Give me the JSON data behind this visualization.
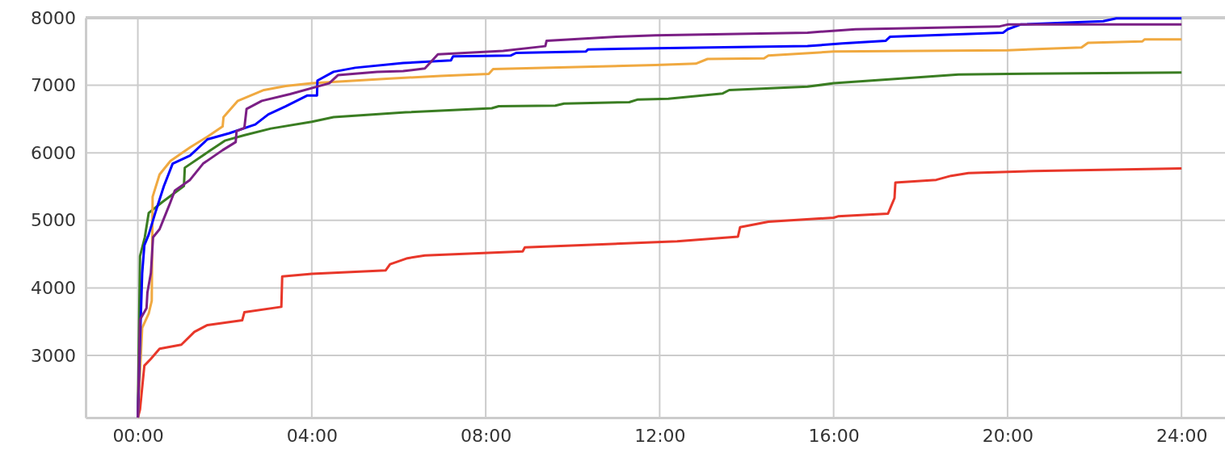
{
  "chart_data": {
    "type": "line",
    "xlim": [
      -1.2,
      25
    ],
    "ylim": [
      2080,
      8000
    ],
    "xticks": [
      {
        "value": 0,
        "label": "00:00"
      },
      {
        "value": 4,
        "label": "04:00"
      },
      {
        "value": 8,
        "label": "08:00"
      },
      {
        "value": 12,
        "label": "12:00"
      },
      {
        "value": 16,
        "label": "16:00"
      },
      {
        "value": 20,
        "label": "20:00"
      },
      {
        "value": 24,
        "label": "24:00"
      }
    ],
    "yticks": [
      3000,
      4000,
      5000,
      6000,
      7000,
      8000
    ],
    "grid": true,
    "line_style": "solid",
    "marker": "none",
    "series": [
      {
        "color": "#e8372a",
        "x": [
          0,
          0.05,
          0.15,
          0.3,
          0.5,
          1.0,
          1.3,
          1.6,
          2.4,
          2.45,
          3.3,
          3.32,
          4,
          5.7,
          5.8,
          6.2,
          6.6,
          8.85,
          8.9,
          12.4,
          13.8,
          13.85,
          14.5,
          16,
          16.1,
          17.25,
          17.4,
          17.42,
          18.36,
          18.7,
          19.1,
          20.6,
          24
        ],
        "values": [
          2080,
          2200,
          2850,
          2950,
          3100,
          3160,
          3350,
          3450,
          3520,
          3640,
          3720,
          4170,
          4210,
          4260,
          4350,
          4440,
          4480,
          4540,
          4600,
          4690,
          4760,
          4900,
          4980,
          5040,
          5060,
          5100,
          5330,
          5560,
          5600,
          5660,
          5700,
          5730,
          5770
        ]
      },
      {
        "color": "#3a7d22",
        "x": [
          0,
          0.05,
          0.16,
          0.25,
          0.56,
          1.06,
          1.08,
          1.63,
          2.0,
          2.44,
          3.06,
          4.0,
          4.5,
          6.16,
          8.14,
          8.3,
          9.6,
          9.8,
          11.3,
          11.5,
          12.2,
          13.45,
          13.6,
          15.4,
          16,
          17.54,
          18.87,
          20,
          24
        ],
        "values": [
          2080,
          4470,
          4750,
          5110,
          5270,
          5510,
          5780,
          6020,
          6180,
          6260,
          6360,
          6460,
          6530,
          6600,
          6660,
          6690,
          6700,
          6730,
          6750,
          6790,
          6800,
          6880,
          6930,
          6980,
          7030,
          7100,
          7160,
          7170,
          7190
        ]
      },
      {
        "color": "#f0a940",
        "x": [
          0,
          0.1,
          0.25,
          0.32,
          0.34,
          0.5,
          0.75,
          1.2,
          1.6,
          1.95,
          1.97,
          2.3,
          2.9,
          3.4,
          4.0,
          5.72,
          6.96,
          8.07,
          8.17,
          11.9,
          12.83,
          13.1,
          14.4,
          14.5,
          16,
          20,
          21.7,
          21.85,
          23.1,
          23.15,
          24
        ],
        "values": [
          2080,
          3410,
          3620,
          3810,
          5350,
          5680,
          5880,
          6080,
          6240,
          6390,
          6530,
          6770,
          6930,
          6990,
          7030,
          7096,
          7140,
          7170,
          7240,
          7300,
          7320,
          7390,
          7400,
          7440,
          7500,
          7520,
          7560,
          7630,
          7650,
          7680,
          7680
        ]
      },
      {
        "color": "#0000ff",
        "x": [
          0,
          0.05,
          0.1,
          0.15,
          0.25,
          0.4,
          0.6,
          0.8,
          1.2,
          1.6,
          2.1,
          2.7,
          3.0,
          3.4,
          3.9,
          4.12,
          4.13,
          4.5,
          5.0,
          6.1,
          7.2,
          7.25,
          8.57,
          8.7,
          10.3,
          10.35,
          11.9,
          15.4,
          16.2,
          17.2,
          17.3,
          19.9,
          20,
          20.3,
          22.2,
          22.5,
          24
        ],
        "values": [
          2080,
          3200,
          4220,
          4630,
          4790,
          5110,
          5510,
          5840,
          5960,
          6200,
          6290,
          6420,
          6570,
          6690,
          6850,
          6850,
          7070,
          7200,
          7260,
          7330,
          7370,
          7430,
          7440,
          7480,
          7500,
          7530,
          7550,
          7580,
          7620,
          7660,
          7720,
          7780,
          7830,
          7900,
          7950,
          7990,
          7990
        ]
      },
      {
        "color": "#7b1f85",
        "x": [
          0,
          0.05,
          0.2,
          0.22,
          0.3,
          0.35,
          0.5,
          0.6,
          0.75,
          0.85,
          1.2,
          1.5,
          1.95,
          2.25,
          2.27,
          2.45,
          2.5,
          2.85,
          3.5,
          4.4,
          4.6,
          5.5,
          6.1,
          6.6,
          6.9,
          8.4,
          9.37,
          9.4,
          11,
          11.9,
          15.4,
          16.5,
          19.8,
          20,
          22.2,
          24
        ],
        "values": [
          2080,
          3530,
          3700,
          3930,
          4220,
          4750,
          4870,
          5030,
          5270,
          5440,
          5600,
          5840,
          6040,
          6160,
          6320,
          6370,
          6650,
          6770,
          6870,
          7030,
          7150,
          7200,
          7210,
          7250,
          7460,
          7510,
          7580,
          7660,
          7720,
          7740,
          7780,
          7830,
          7870,
          7900,
          7900,
          7900
        ]
      }
    ]
  }
}
